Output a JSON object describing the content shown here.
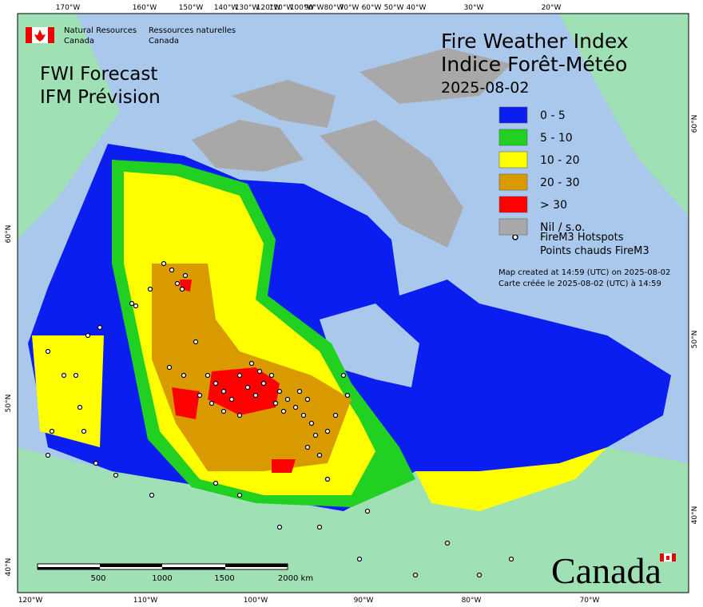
{
  "header": {
    "logo_en": [
      "Natural Resources",
      "Canada"
    ],
    "logo_fr": [
      "Ressources naturelles",
      "Canada"
    ]
  },
  "product": {
    "line1": "FWI Forecast",
    "line2": "IFM Prévision"
  },
  "title": {
    "line1": "Fire Weather Index",
    "line2": "Indice Forêt-Météo",
    "date": "2025-08-02"
  },
  "legend": {
    "items": [
      {
        "label": "0 - 5",
        "color": "#0a1ef0"
      },
      {
        "label": "5 - 10",
        "color": "#22d022"
      },
      {
        "label": "10 - 20",
        "color": "#ffff00"
      },
      {
        "label": "20 - 30",
        "color": "#d99a00"
      },
      {
        "label": "> 30",
        "color": "#ff0000"
      },
      {
        "label": "Nil / s.o.",
        "color": "#a8a8a8"
      }
    ],
    "hotspots": [
      "FireM3 Hotspots",
      "Points chauds FireM3"
    ]
  },
  "notes": [
    "Map created at 14:59 (UTC) on 2025-08-02",
    "Carte créée le 2025-08-02 (UTC) à 14:59"
  ],
  "graticule": {
    "top": [
      "170°W",
      "160°W",
      "150°W",
      "140°W",
      "130°W",
      "120°W",
      "110°W",
      "100°W",
      "90°W",
      "80°W",
      "70°W",
      "60°W",
      "50°W",
      "40°W",
      "30°W",
      "20°W"
    ],
    "bottom": [
      "120°W",
      "110°W",
      "100°W",
      "90°W",
      "80°W",
      "70°W"
    ],
    "left": [
      "60°N",
      "50°N",
      "40°N"
    ],
    "right": [
      "60°N",
      "50°N",
      "40°N"
    ]
  },
  "scale_bar": {
    "labels": [
      "500",
      "1000",
      "1500",
      "2000 km"
    ]
  },
  "wordmark": "Canada"
}
